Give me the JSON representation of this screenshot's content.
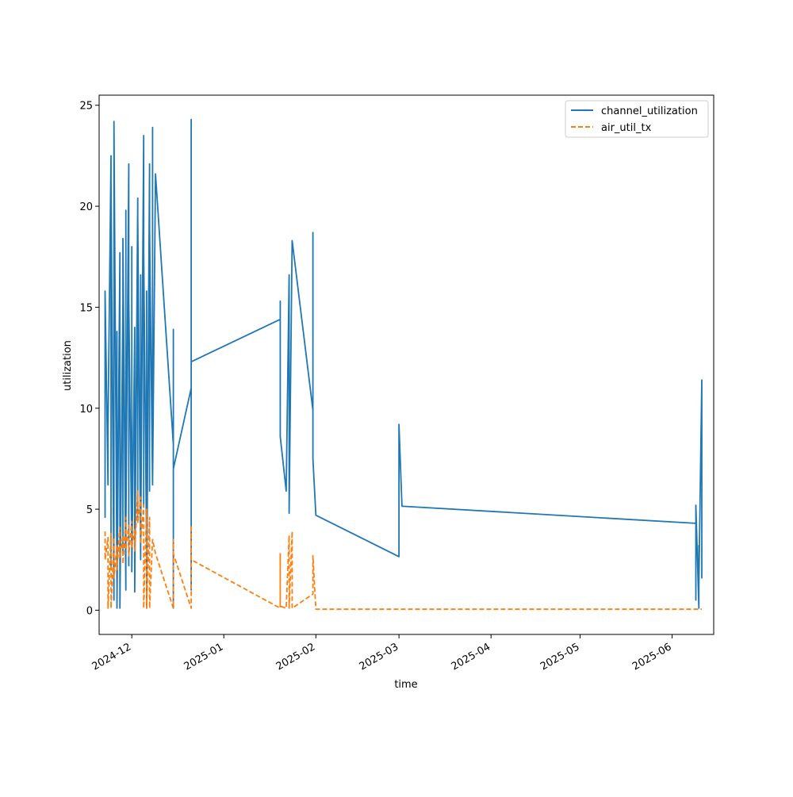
{
  "chart_data": {
    "type": "line",
    "title": "",
    "xlabel": "time",
    "ylabel": "utilization",
    "x_tick_labels": [
      "2024-12",
      "2025-01",
      "2025-02",
      "2025-03",
      "2025-04",
      "2025-05",
      "2025-06"
    ],
    "x_ticks": [
      "2024-12-01",
      "2025-01-01",
      "2025-02-01",
      "2025-03-01",
      "2025-04-01",
      "2025-05-01",
      "2025-06-01"
    ],
    "y_tick_labels": [
      "0",
      "5",
      "10",
      "15",
      "20",
      "25"
    ],
    "y_ticks": [
      0,
      5,
      10,
      15,
      20,
      25
    ],
    "xlim": [
      "2024-11-20",
      "2025-06-15"
    ],
    "ylim": [
      -1.2,
      25.5
    ],
    "grid": false,
    "legend_position": "top-right",
    "series": [
      {
        "name": "channel_utilization",
        "color": "#1f77b4",
        "style": "solid",
        "points": [
          [
            "2024-11-22",
            11.5
          ],
          [
            "2024-11-22",
            8.9
          ],
          [
            "2024-11-22",
            13.1
          ],
          [
            "2024-11-22",
            4.6
          ],
          [
            "2024-11-22",
            15.8
          ],
          [
            "2024-11-23",
            6.2
          ],
          [
            "2024-11-23",
            9.0
          ],
          [
            "2024-11-24",
            22.5
          ],
          [
            "2024-11-24",
            2.0
          ],
          [
            "2024-11-24",
            21.2
          ],
          [
            "2024-11-25",
            0.5
          ],
          [
            "2024-11-25",
            19.4
          ],
          [
            "2024-11-25",
            3.5
          ],
          [
            "2024-11-25",
            24.2
          ],
          [
            "2024-11-26",
            1.2
          ],
          [
            "2024-11-26",
            13.8
          ],
          [
            "2024-11-26",
            0.1
          ],
          [
            "2024-11-27",
            17.7
          ],
          [
            "2024-11-27",
            2.4
          ],
          [
            "2024-11-27",
            16.6
          ],
          [
            "2024-11-27",
            0.1
          ],
          [
            "2024-11-28",
            15.3
          ],
          [
            "2024-11-28",
            2.8
          ],
          [
            "2024-11-28",
            18.4
          ],
          [
            "2024-11-29",
            1.0
          ],
          [
            "2024-11-29",
            19.8
          ],
          [
            "2024-11-29",
            3.8
          ],
          [
            "2024-11-30",
            22.1
          ],
          [
            "2024-11-30",
            2.2
          ],
          [
            "2024-11-30",
            15.3
          ],
          [
            "2024-12-01",
            3.1
          ],
          [
            "2024-12-01",
            18.0
          ],
          [
            "2024-12-01",
            1.9
          ],
          [
            "2024-12-02",
            14.0
          ],
          [
            "2024-12-02",
            0.9
          ],
          [
            "2024-12-03",
            20.4
          ],
          [
            "2024-12-03",
            4.6
          ],
          [
            "2024-12-03",
            19.5
          ],
          [
            "2024-12-04",
            2.5
          ],
          [
            "2024-12-04",
            16.6
          ],
          [
            "2024-12-04",
            3.2
          ],
          [
            "2024-12-05",
            23.5
          ],
          [
            "2024-12-05",
            5.1
          ],
          [
            "2024-12-05",
            17.7
          ],
          [
            "2024-12-06",
            2.8
          ],
          [
            "2024-12-06",
            15.8
          ],
          [
            "2024-12-06",
            0.1
          ],
          [
            "2024-12-07",
            22.1
          ],
          [
            "2024-12-07",
            5.9
          ],
          [
            "2024-12-07",
            18.9
          ],
          [
            "2024-12-08",
            6.2
          ],
          [
            "2024-12-08",
            23.9
          ],
          [
            "2024-12-08",
            6.3
          ],
          [
            "2024-12-09",
            21.6
          ],
          [
            "2024-12-15",
            8.2
          ],
          [
            "2024-12-15",
            13.9
          ],
          [
            "2024-12-15",
            0.1
          ],
          [
            "2024-12-15",
            7.0
          ],
          [
            "2024-12-21",
            11.0
          ],
          [
            "2024-12-21",
            5.5
          ],
          [
            "2024-12-21",
            24.3
          ],
          [
            "2024-12-21",
            1.0
          ],
          [
            "2024-12-21",
            12.3
          ],
          [
            "2025-01-20",
            14.4
          ],
          [
            "2025-01-20",
            15.3
          ],
          [
            "2025-01-20",
            8.6
          ],
          [
            "2025-01-22",
            5.9
          ],
          [
            "2025-01-23",
            16.6
          ],
          [
            "2025-01-23",
            4.8
          ],
          [
            "2025-01-24",
            18.3
          ],
          [
            "2025-01-31",
            9.9
          ],
          [
            "2025-01-31",
            18.7
          ],
          [
            "2025-01-31",
            7.5
          ],
          [
            "2025-02-01",
            4.7
          ],
          [
            "2025-03-01",
            2.65
          ],
          [
            "2025-03-01",
            9.2
          ],
          [
            "2025-03-02",
            5.15
          ],
          [
            "2025-06-09",
            4.3
          ],
          [
            "2025-06-09",
            0.5
          ],
          [
            "2025-06-09",
            5.2
          ],
          [
            "2025-06-10",
            0.1
          ],
          [
            "2025-06-10",
            3.2
          ],
          [
            "2025-06-10",
            1.2
          ],
          [
            "2025-06-11",
            11.4
          ],
          [
            "2025-06-11",
            1.6
          ],
          [
            "2025-06-11",
            3.2
          ]
        ]
      },
      {
        "name": "air_util_tx",
        "color": "#ff7f0e",
        "style": "dashed",
        "points": [
          [
            "2024-11-22",
            3.9
          ],
          [
            "2024-11-22",
            2.5
          ],
          [
            "2024-11-23",
            3.6
          ],
          [
            "2024-11-23",
            0.1
          ],
          [
            "2024-11-24",
            3.8
          ],
          [
            "2024-11-24",
            0.1
          ],
          [
            "2024-11-25",
            3.6
          ],
          [
            "2024-11-25",
            1.6
          ],
          [
            "2024-11-26",
            3.2
          ],
          [
            "2024-11-26",
            2.0
          ],
          [
            "2024-11-27",
            4.1
          ],
          [
            "2024-11-27",
            2.6
          ],
          [
            "2024-11-28",
            3.7
          ],
          [
            "2024-11-28",
            2.3
          ],
          [
            "2024-11-29",
            4.6
          ],
          [
            "2024-11-29",
            3.0
          ],
          [
            "2024-11-30",
            4.2
          ],
          [
            "2024-11-30",
            2.7
          ],
          [
            "2024-12-01",
            4.4
          ],
          [
            "2024-12-01",
            3.1
          ],
          [
            "2024-12-02",
            4.0
          ],
          [
            "2024-12-02",
            2.9
          ],
          [
            "2024-12-03",
            5.9
          ],
          [
            "2024-12-03",
            4.3
          ],
          [
            "2024-12-04",
            5.6
          ],
          [
            "2024-12-04",
            3.3
          ],
          [
            "2024-12-05",
            5.2
          ],
          [
            "2024-12-05",
            0.1
          ],
          [
            "2024-12-06",
            5.0
          ],
          [
            "2024-12-06",
            0.1
          ],
          [
            "2024-12-07",
            4.6
          ],
          [
            "2024-12-07",
            0.1
          ],
          [
            "2024-12-08",
            3.5
          ],
          [
            "2024-12-09",
            2.8
          ],
          [
            "2024-12-15",
            0.1
          ],
          [
            "2024-12-15",
            3.5
          ],
          [
            "2024-12-15",
            2.8
          ],
          [
            "2024-12-21",
            0.1
          ],
          [
            "2024-12-21",
            4.2
          ],
          [
            "2024-12-21",
            2.5
          ],
          [
            "2025-01-20",
            0.1
          ],
          [
            "2025-01-20",
            2.8
          ],
          [
            "2025-01-20",
            0.2
          ],
          [
            "2025-01-22",
            0.1
          ],
          [
            "2025-01-23",
            3.7
          ],
          [
            "2025-01-23",
            0.1
          ],
          [
            "2025-01-24",
            3.9
          ],
          [
            "2025-01-24",
            0.1
          ],
          [
            "2025-01-31",
            0.8
          ],
          [
            "2025-01-31",
            2.7
          ],
          [
            "2025-02-01",
            0.05
          ],
          [
            "2025-03-01",
            0.05
          ],
          [
            "2025-06-09",
            0.05
          ],
          [
            "2025-06-11",
            0.05
          ]
        ]
      }
    ]
  }
}
